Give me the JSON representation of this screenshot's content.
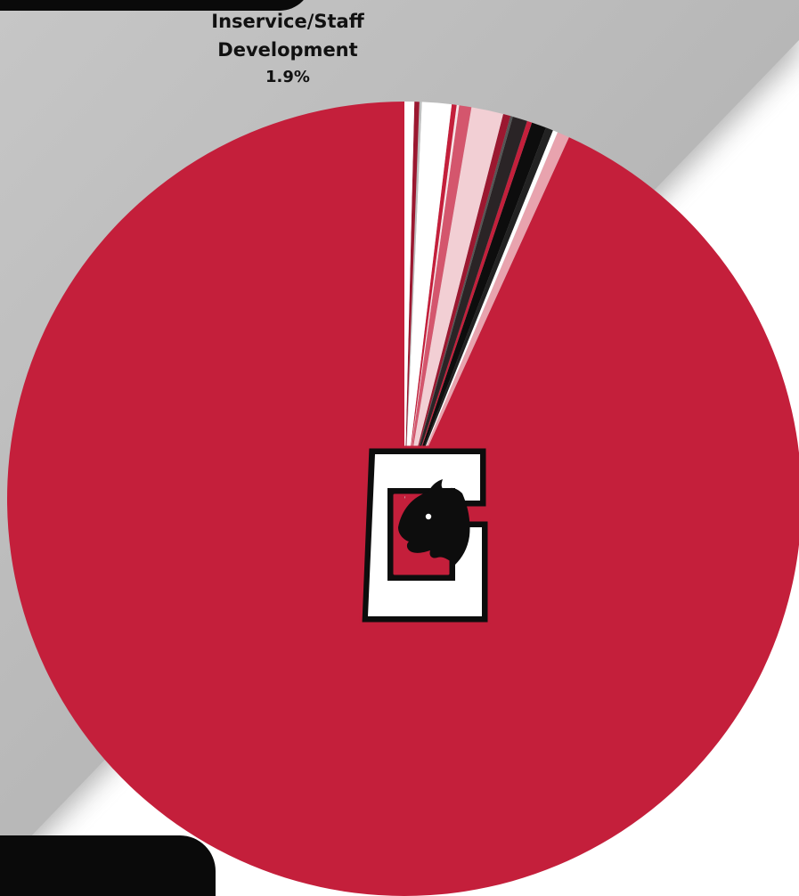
{
  "callout": {
    "label_line1": "Inservice/Staff",
    "label_line2": "Development",
    "value": "1.9%"
  },
  "colors": {
    "primary_red": "#c41f3b",
    "black": "#0d0d0d",
    "background_gray": "#b8b8b8",
    "background_white": "#ffffff"
  },
  "logo": {
    "letter": "G",
    "description": "horse-head-logo"
  },
  "chart_data": {
    "type": "pie",
    "start_angle_deg": 0,
    "direction": "counterclockwise",
    "annotations": [
      {
        "label": "Inservice/Staff Development",
        "value": 1.9
      }
    ],
    "slices": [
      {
        "value": 93.2,
        "color": "#c41f3b"
      },
      {
        "value": 0.5,
        "color": "#e8a3ae"
      },
      {
        "value": 0.2,
        "color": "#ffffff"
      },
      {
        "value": 0.3,
        "color": "#222222"
      },
      {
        "value": 0.6,
        "color": "#0d0d0d"
      },
      {
        "value": 0.2,
        "color": "#c41f3b"
      },
      {
        "value": 0.6,
        "color": "#2a2426"
      },
      {
        "value": 0.1,
        "color": "#555555"
      },
      {
        "value": 0.3,
        "color": "#9b1830"
      },
      {
        "value": 1.3,
        "color": "#f2cfd4"
      },
      {
        "value": 0.5,
        "color": "#d4566d"
      },
      {
        "value": 0.1,
        "color": "#f7e4e7"
      },
      {
        "value": 0.2,
        "color": "#c41f3b"
      },
      {
        "value": 1.2,
        "color": "#ffffff"
      },
      {
        "value": 0.1,
        "color": "#bfbfbf"
      },
      {
        "value": 0.2,
        "color": "#9b1830"
      },
      {
        "value": 0.4,
        "color": "#ffffff"
      }
    ]
  }
}
